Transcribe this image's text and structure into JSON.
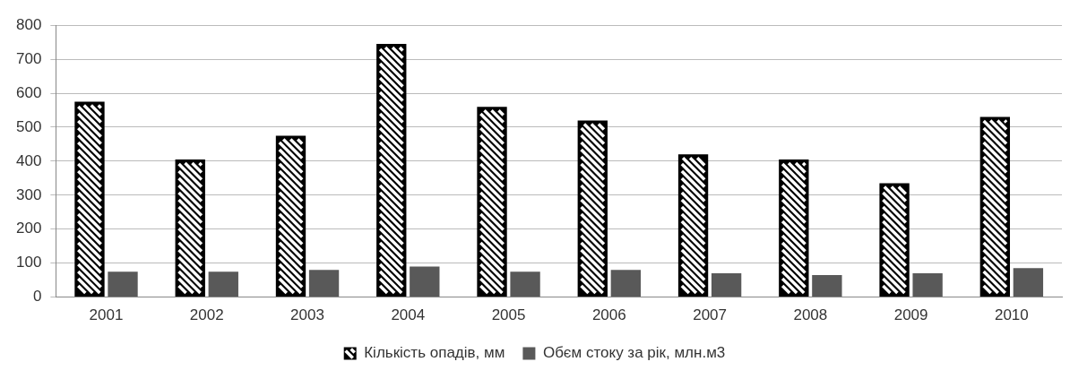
{
  "chart_data": {
    "type": "bar",
    "categories": [
      "2001",
      "2002",
      "2003",
      "2004",
      "2005",
      "2006",
      "2007",
      "2008",
      "2009",
      "2010"
    ],
    "series": [
      {
        "name": "Кількість опадів, мм",
        "color": "#000000",
        "values": [
          575,
          405,
          475,
          745,
          560,
          520,
          420,
          405,
          335,
          530
        ]
      },
      {
        "name": "Обєм стоку за рік, млн.м3",
        "color": "#595959",
        "values": [
          75,
          75,
          80,
          90,
          75,
          80,
          70,
          65,
          70,
          85
        ]
      }
    ],
    "ylim": [
      0,
      800
    ],
    "yticks": [
      0,
      100,
      200,
      300,
      400,
      500,
      600,
      700,
      800
    ],
    "grid": "y",
    "legend": "bottom"
  }
}
